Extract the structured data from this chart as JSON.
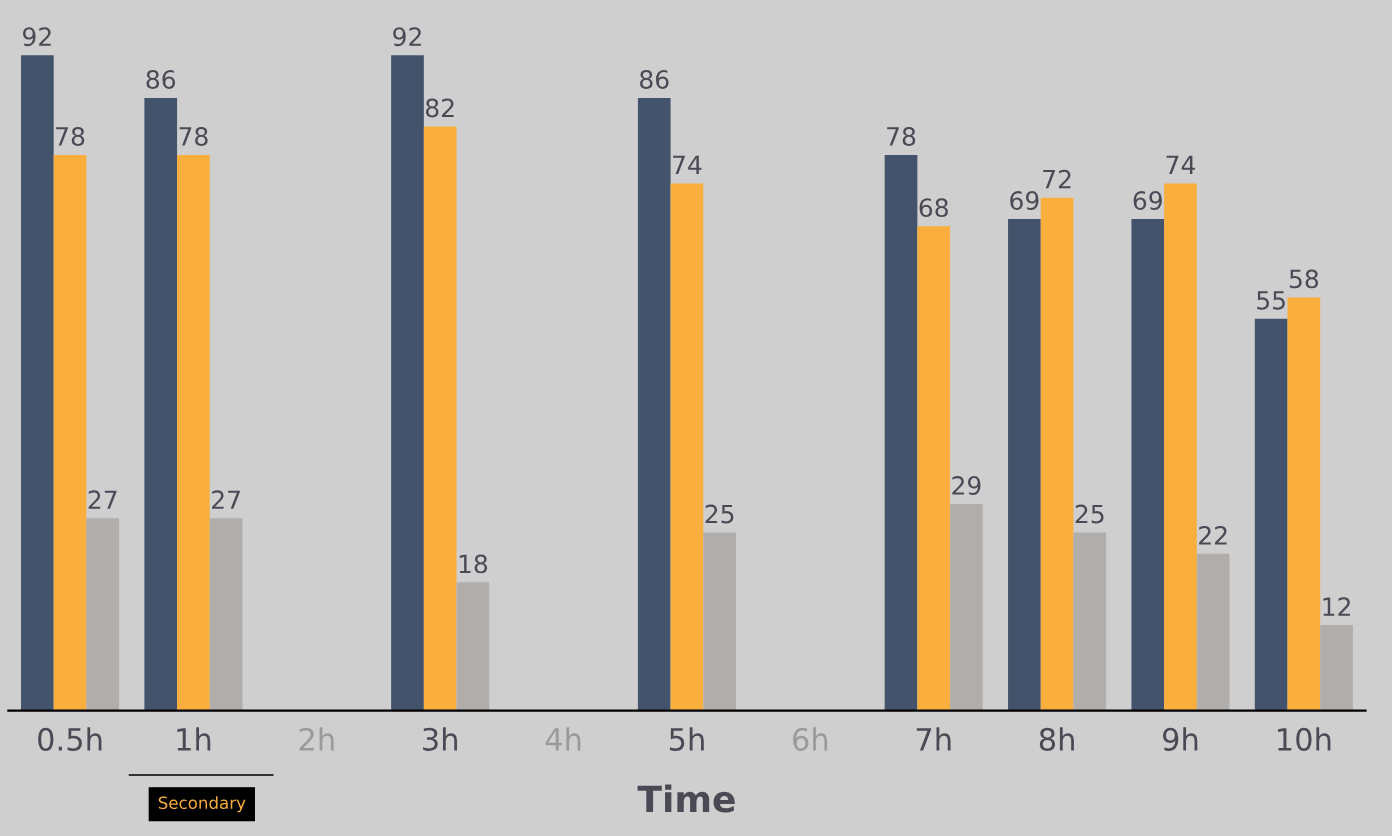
{
  "chart_data": {
    "type": "bar",
    "xlabel": "Time",
    "categories": [
      "0.5h",
      "1h",
      "2h",
      "3h",
      "4h",
      "5h",
      "6h",
      "7h",
      "8h",
      "9h",
      "10h"
    ],
    "series": [
      {
        "color": "#42536b",
        "values": [
          92,
          86,
          null,
          92,
          null,
          86,
          null,
          78,
          69,
          69,
          55
        ]
      },
      {
        "color": "#f9ae3d",
        "values": [
          78,
          78,
          null,
          82,
          null,
          74,
          null,
          68,
          72,
          74,
          58
        ]
      },
      {
        "color": "#b0adab",
        "values": [
          27,
          27,
          null,
          18,
          null,
          25,
          null,
          29,
          25,
          22,
          12
        ]
      }
    ],
    "data_labels": true,
    "grid": false,
    "legend": false,
    "annotations": [
      "Secondary"
    ]
  }
}
